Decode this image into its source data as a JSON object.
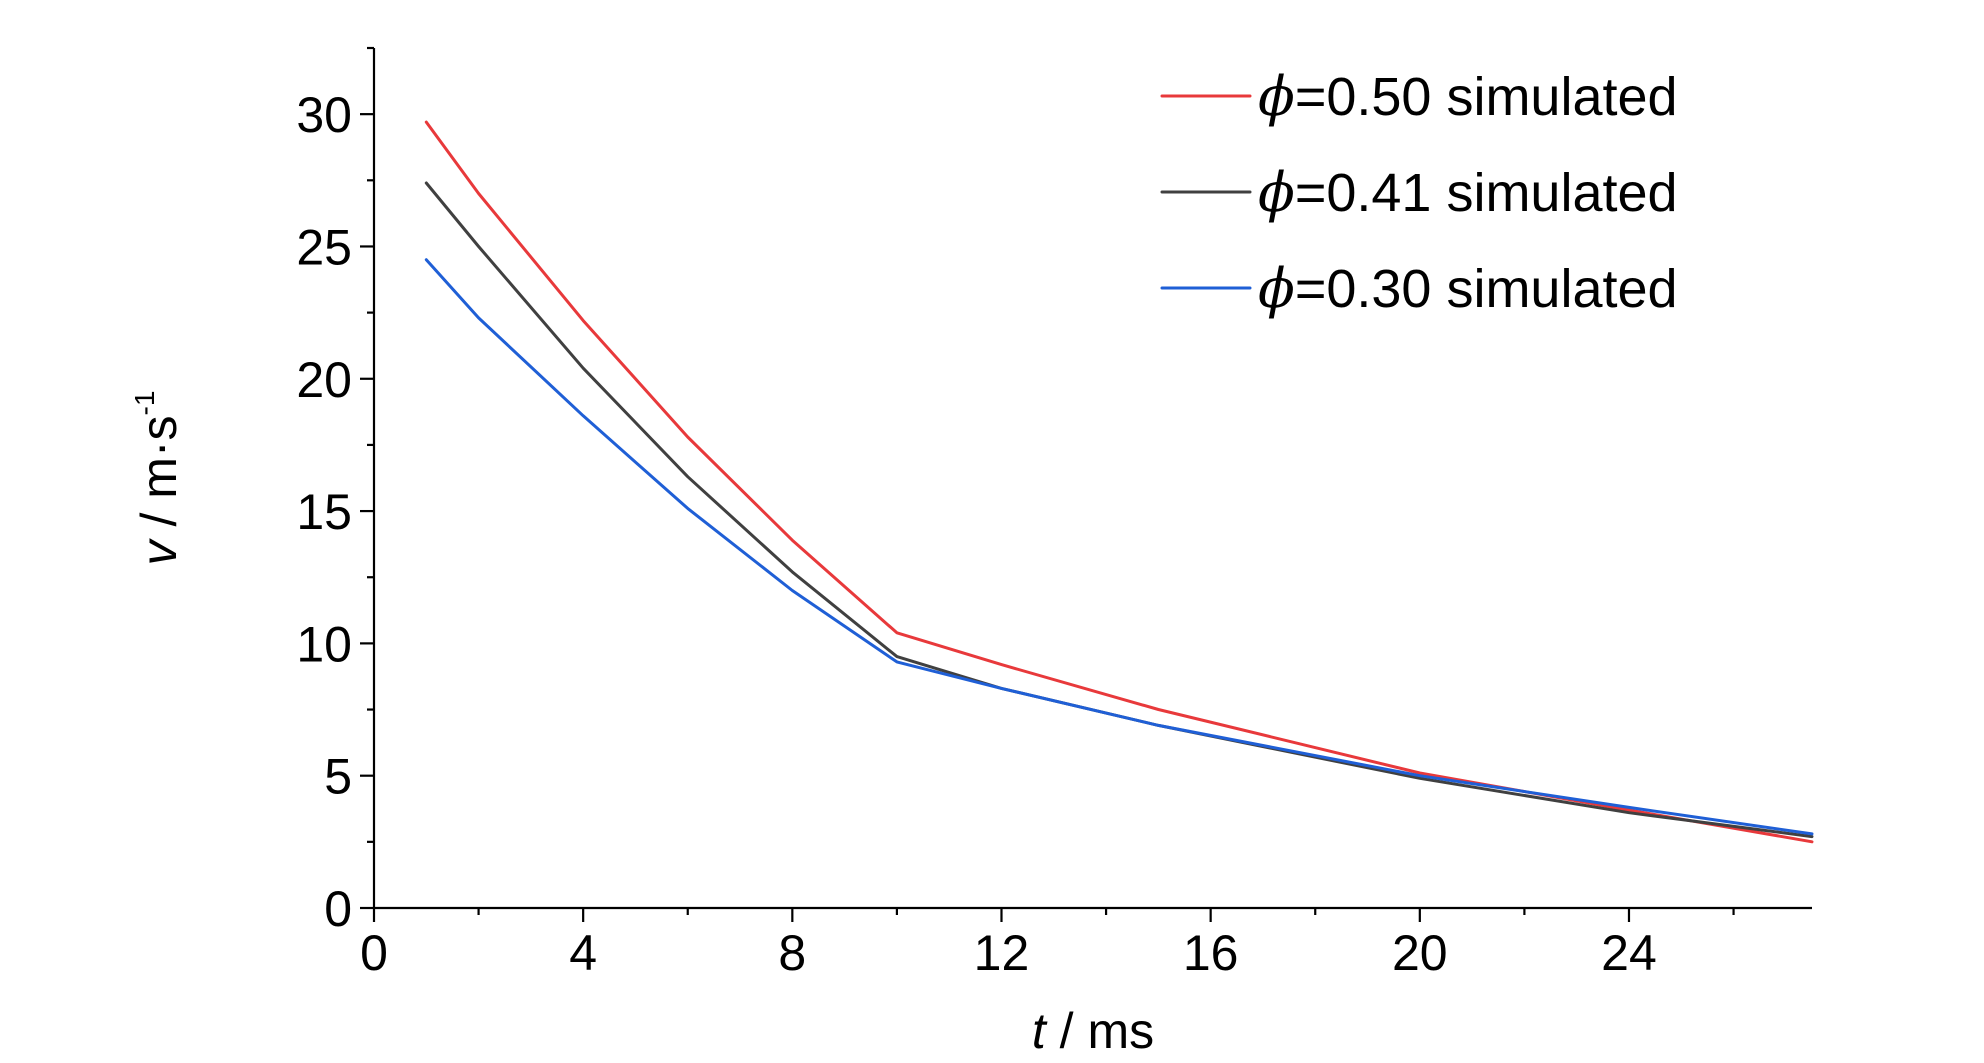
{
  "chart_data": {
    "type": "line",
    "title": "",
    "xlabel": {
      "var": "t",
      "unit": " / ms"
    },
    "ylabel": {
      "var": "v",
      "unit": " / m·s",
      "sup": "-1"
    },
    "xlim": [
      0,
      27.5
    ],
    "ylim": [
      0,
      32.5
    ],
    "xticks": [
      0,
      4,
      8,
      12,
      16,
      20,
      24
    ],
    "yticks": [
      0,
      5,
      10,
      15,
      20,
      25,
      30
    ],
    "xminor_step": 2,
    "yminor_step": 2.5,
    "legend_position": "top-right",
    "series": [
      {
        "name": {
          "symbol": "ϕ",
          "text": "=0.50 simulated"
        },
        "color": "#e8393b",
        "x": [
          1,
          2,
          4,
          6,
          8,
          10,
          12,
          15,
          20,
          24,
          27.5
        ],
        "y": [
          29.7,
          27.0,
          22.2,
          17.8,
          13.9,
          10.4,
          9.2,
          7.5,
          5.1,
          3.7,
          2.5
        ]
      },
      {
        "name": {
          "symbol": "ϕ",
          "text": "=0.41 simulated"
        },
        "color": "#404040",
        "x": [
          1,
          2,
          4,
          6,
          8,
          10,
          12,
          15,
          20,
          24,
          27.5
        ],
        "y": [
          27.4,
          25.0,
          20.4,
          16.3,
          12.7,
          9.5,
          8.3,
          6.9,
          4.9,
          3.6,
          2.7
        ]
      },
      {
        "name": {
          "symbol": "ϕ",
          "text": "=0.30 simulated"
        },
        "color": "#1f5fd6",
        "x": [
          1,
          2,
          4,
          6,
          8,
          10,
          12,
          15,
          20,
          24,
          27.5
        ],
        "y": [
          24.5,
          22.3,
          18.6,
          15.1,
          12.0,
          9.3,
          8.3,
          6.9,
          5.0,
          3.8,
          2.8
        ]
      }
    ]
  }
}
